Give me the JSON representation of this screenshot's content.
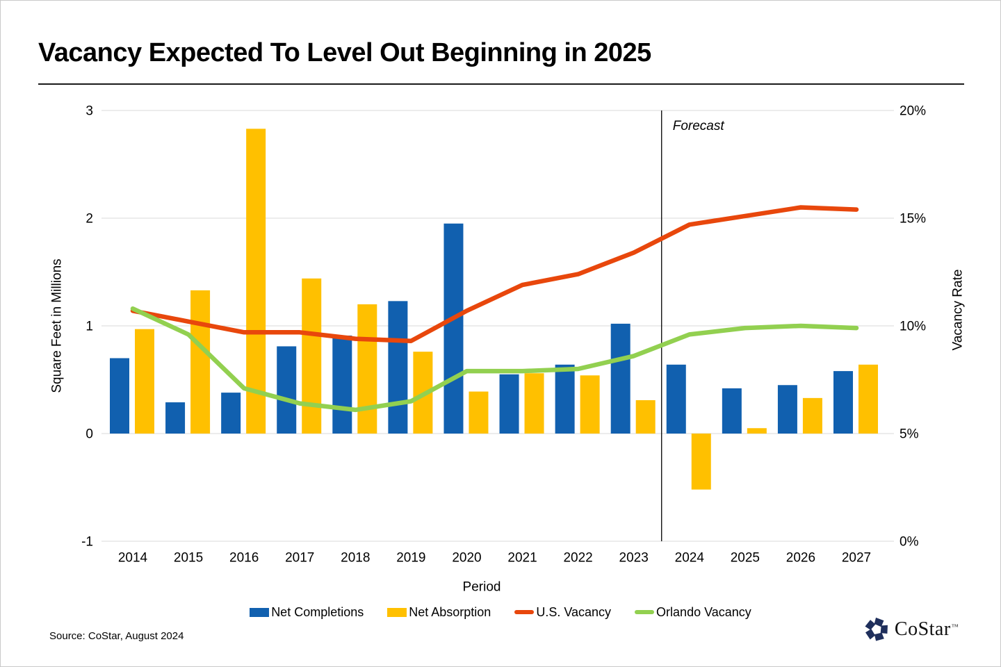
{
  "title": "Vacancy Expected To Level Out Beginning in 2025",
  "source": "Source: CoStar, August 2024",
  "logo": {
    "name": "CoStar",
    "tm": "™"
  },
  "colors": {
    "net_completions": "#1160AF",
    "net_absorption": "#FFC000",
    "us_vacancy": "#E8470C",
    "orlando_vacancy": "#92D050",
    "gridline": "#D9D9D9",
    "forecast_divider": "#000000",
    "logo_navy": "#1F2F5C"
  },
  "chart_data": {
    "type": "bar+line combo",
    "categories": [
      "2014",
      "2015",
      "2016",
      "2017",
      "2018",
      "2019",
      "2020",
      "2021",
      "2022",
      "2023",
      "2024",
      "2025",
      "2026",
      "2027"
    ],
    "xlabel": "Period",
    "forecast_label": "Forecast",
    "forecast_starts_after": "2023",
    "left_axis": {
      "label": "Square Feet in Millions",
      "min": -1,
      "max": 3,
      "ticks": [
        3,
        2,
        1,
        0,
        -1
      ]
    },
    "right_axis": {
      "label": "Vacancy Rate",
      "min": 0,
      "max": 20,
      "ticks": [
        "20%",
        "15%",
        "10%",
        "5%",
        "0%"
      ]
    },
    "legend_position": "bottom",
    "grid": true,
    "series": [
      {
        "name": "Net Completions",
        "type": "bar",
        "axis": "left",
        "color": "#1160AF",
        "values": [
          0.7,
          0.29,
          0.38,
          0.81,
          0.91,
          1.23,
          1.95,
          0.55,
          0.64,
          1.02,
          0.64,
          0.42,
          0.45,
          0.58
        ]
      },
      {
        "name": "Net Absorption",
        "type": "bar",
        "axis": "left",
        "color": "#FFC000",
        "values": [
          0.97,
          1.33,
          2.83,
          1.44,
          1.2,
          0.76,
          0.39,
          0.56,
          0.54,
          0.31,
          -0.52,
          0.05,
          0.33,
          0.64
        ]
      },
      {
        "name": "U.S. Vacancy",
        "type": "line",
        "axis": "right",
        "color": "#E8470C",
        "values": [
          10.7,
          10.2,
          9.7,
          9.7,
          9.4,
          9.3,
          10.7,
          11.9,
          12.4,
          13.4,
          14.7,
          15.1,
          15.5,
          15.4
        ]
      },
      {
        "name": "Orlando Vacancy",
        "type": "line",
        "axis": "right",
        "color": "#92D050",
        "values": [
          10.8,
          9.6,
          7.1,
          6.4,
          6.1,
          6.5,
          7.9,
          7.9,
          8.0,
          8.6,
          9.6,
          9.9,
          10.0,
          9.9
        ]
      }
    ]
  }
}
